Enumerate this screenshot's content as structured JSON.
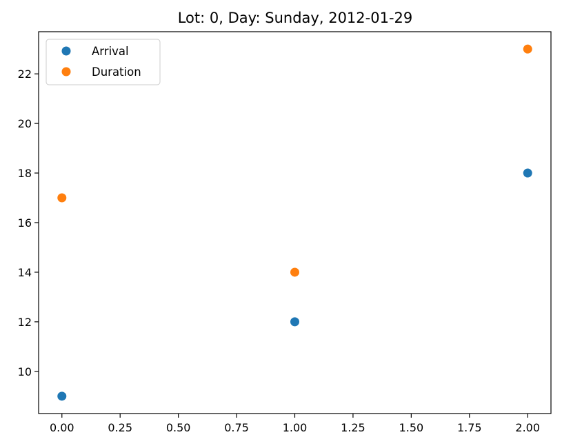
{
  "chart_data": {
    "type": "scatter",
    "title": "Lot: 0, Day: Sunday, 2012-01-29",
    "xlabel": "",
    "ylabel": "",
    "xlim": [
      -0.1,
      2.1
    ],
    "ylim": [
      8.3,
      23.7
    ],
    "x_ticks": [
      0.0,
      0.25,
      0.5,
      0.75,
      1.0,
      1.25,
      1.5,
      1.75,
      2.0
    ],
    "x_tick_labels": [
      "0.00",
      "0.25",
      "0.50",
      "0.75",
      "1.00",
      "1.25",
      "1.50",
      "1.75",
      "2.00"
    ],
    "y_ticks": [
      10,
      12,
      14,
      16,
      18,
      20,
      22
    ],
    "y_tick_labels": [
      "10",
      "12",
      "14",
      "16",
      "18",
      "20",
      "22"
    ],
    "grid": false,
    "legend_position": "top-left",
    "series": [
      {
        "name": "Arrival",
        "color": "#1f77b4",
        "x": [
          0,
          1,
          2
        ],
        "y": [
          9,
          12,
          18
        ]
      },
      {
        "name": "Duration",
        "color": "#ff7f0e",
        "x": [
          0,
          1,
          2
        ],
        "y": [
          17,
          14,
          23
        ]
      }
    ]
  }
}
